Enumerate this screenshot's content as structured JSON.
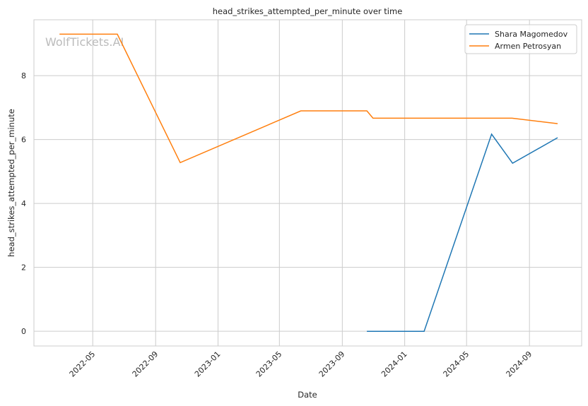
{
  "chart_data": {
    "type": "line",
    "title": "head_strikes_attempted_per_minute over time",
    "xlabel": "Date",
    "ylabel": "head_strikes_attempted_per_minute",
    "xlim": [
      "2022-01-06",
      "2024-12-12"
    ],
    "ylim": [
      -0.46,
      9.75
    ],
    "x_ticks": [
      "2022-05",
      "2022-09",
      "2023-01",
      "2023-05",
      "2023-09",
      "2024-01",
      "2024-05",
      "2024-09"
    ],
    "y_ticks": [
      0,
      2,
      4,
      6,
      8
    ],
    "grid": true,
    "legend_position": "top-right",
    "watermark": "WolfTickets.AI",
    "series": [
      {
        "name": "Shara Magomedov",
        "color": "#1f77b4",
        "x": [
          "2023-10-19",
          "2024-02-08",
          "2024-06-19",
          "2024-07-30",
          "2024-10-26"
        ],
        "y": [
          0,
          0,
          6.17,
          5.26,
          6.06
        ]
      },
      {
        "name": "Armen Petrosyan",
        "color": "#ff7f0e",
        "x": [
          "2022-02-25",
          "2022-06-18",
          "2022-10-19",
          "2023-06-12",
          "2023-10-19",
          "2023-10-31",
          "2024-07-29",
          "2024-10-26"
        ],
        "y": [
          9.3,
          9.3,
          5.28,
          6.9,
          6.9,
          6.67,
          6.67,
          6.5
        ]
      }
    ]
  }
}
